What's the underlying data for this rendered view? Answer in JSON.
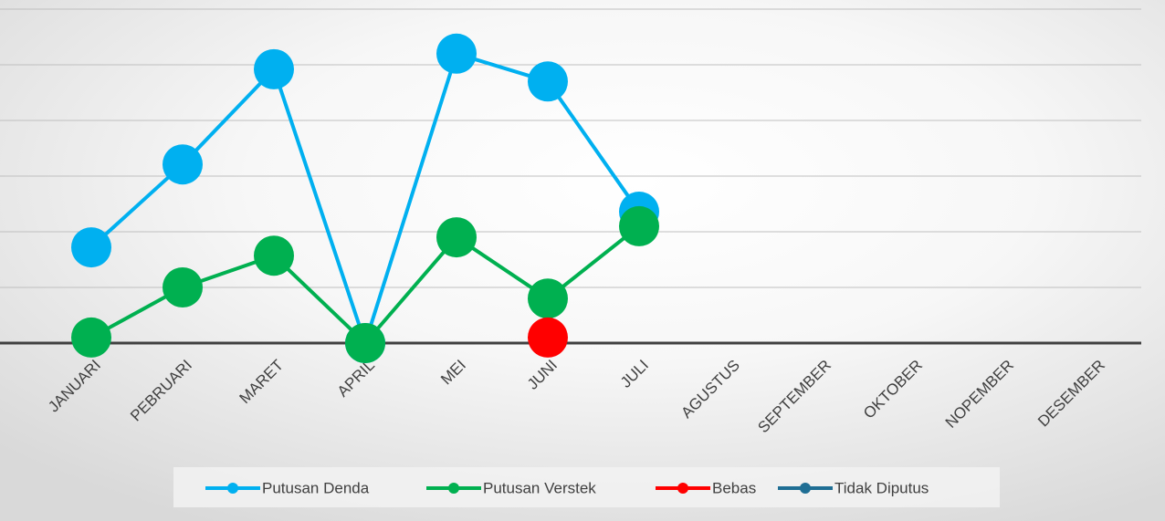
{
  "chart_data": {
    "type": "line",
    "categories": [
      "JANUARI",
      "PEBRUARI",
      "MARET",
      "APRIL",
      "MEI",
      "JUNI",
      "JULI",
      "AGUSTUS",
      "SEPTEMBER",
      "OKTOBER",
      "NOPEMBER",
      "DESEMBER"
    ],
    "series": [
      {
        "name": "Putusan Denda",
        "color": "#00b0f0",
        "values": [
          1.72,
          3.21,
          4.92,
          0,
          5.2,
          4.7,
          2.36,
          null,
          null,
          null,
          null,
          null
        ]
      },
      {
        "name": "Putusan Verstek",
        "color": "#00b050",
        "values": [
          0.1,
          1.0,
          1.57,
          0,
          1.9,
          0.8,
          2.1,
          null,
          null,
          null,
          null,
          null
        ]
      },
      {
        "name": "Bebas",
        "color": "#ff0000",
        "values": [
          null,
          null,
          null,
          null,
          null,
          0.1,
          null,
          null,
          null,
          null,
          null,
          null
        ]
      },
      {
        "name": "Tidak Diputus",
        "color": "#1f6e94",
        "values": [
          null,
          null,
          null,
          null,
          null,
          null,
          null,
          null,
          null,
          null,
          null,
          null
        ]
      }
    ],
    "ylim": [
      0,
      6
    ],
    "yticks": [
      0,
      1,
      2,
      3,
      4,
      5,
      6
    ],
    "grid": true,
    "legend": "bottom"
  }
}
